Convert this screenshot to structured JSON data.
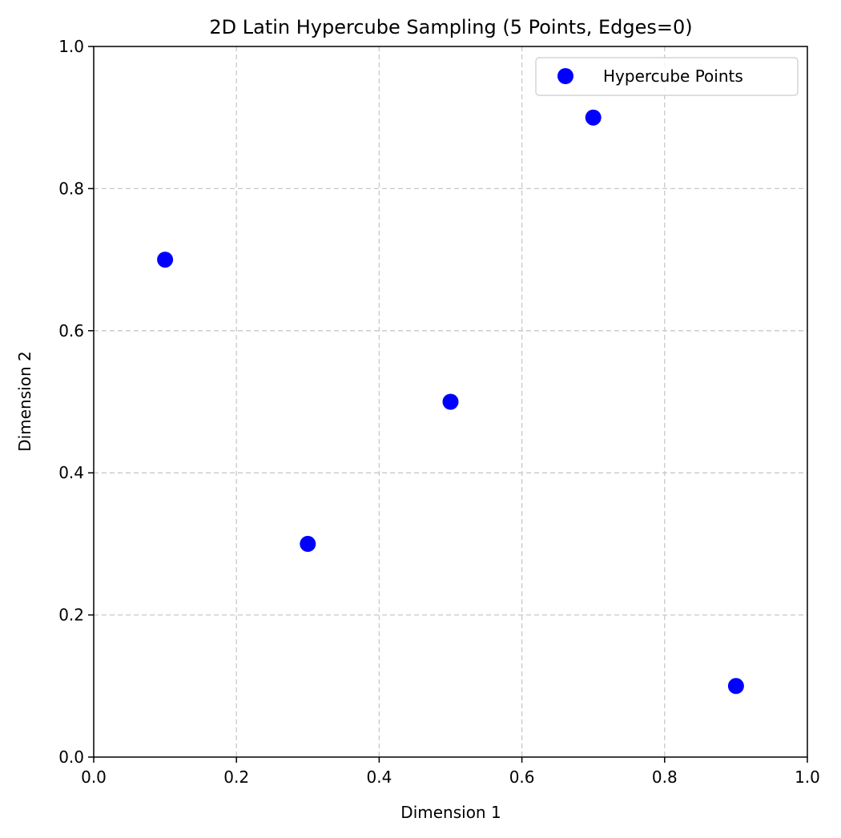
{
  "chart_data": {
    "type": "scatter",
    "title": "2D Latin Hypercube Sampling (5 Points, Edges=0)",
    "xlabel": "Dimension 1",
    "ylabel": "Dimension 2",
    "xlim": [
      0.0,
      1.0
    ],
    "ylim": [
      0.0,
      1.0
    ],
    "x_ticks": [
      "0.0",
      "0.2",
      "0.4",
      "0.6",
      "0.8",
      "1.0"
    ],
    "y_ticks": [
      "0.0",
      "0.2",
      "0.4",
      "0.6",
      "0.8",
      "1.0"
    ],
    "grid": true,
    "grid_style": "dashed",
    "legend_position": "top-right",
    "series": [
      {
        "name": "Hypercube Points",
        "color": "#0000ff",
        "points": [
          {
            "x": 0.1,
            "y": 0.7
          },
          {
            "x": 0.3,
            "y": 0.3
          },
          {
            "x": 0.5,
            "y": 0.5
          },
          {
            "x": 0.7,
            "y": 0.9
          },
          {
            "x": 0.9,
            "y": 0.1
          }
        ]
      }
    ]
  }
}
